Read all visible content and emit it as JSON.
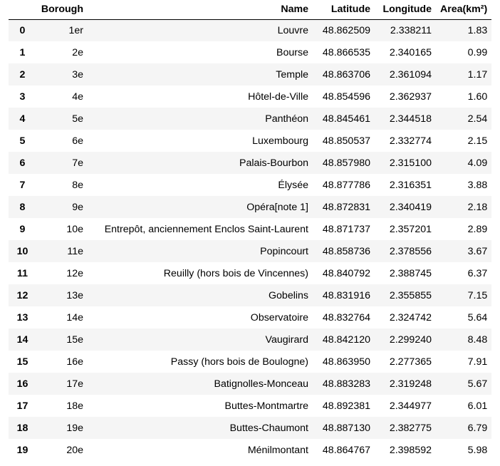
{
  "table": {
    "columns": [
      "",
      "Borough",
      "Name",
      "Latitude",
      "Longitude",
      "Area(km²)"
    ],
    "rows": [
      [
        "0",
        "1er",
        "Louvre",
        "48.862509",
        "2.338211",
        "1.83"
      ],
      [
        "1",
        "2e",
        "Bourse",
        "48.866535",
        "2.340165",
        "0.99"
      ],
      [
        "2",
        "3e",
        "Temple",
        "48.863706",
        "2.361094",
        "1.17"
      ],
      [
        "3",
        "4e",
        "Hôtel-de-Ville",
        "48.854596",
        "2.362937",
        "1.60"
      ],
      [
        "4",
        "5e",
        "Panthéon",
        "48.845461",
        "2.344518",
        "2.54"
      ],
      [
        "5",
        "6e",
        "Luxembourg",
        "48.850537",
        "2.332774",
        "2.15"
      ],
      [
        "6",
        "7e",
        "Palais-Bourbon",
        "48.857980",
        "2.315100",
        "4.09"
      ],
      [
        "7",
        "8e",
        "Élysée",
        "48.877786",
        "2.316351",
        "3.88"
      ],
      [
        "8",
        "9e",
        "Opéra[note 1]",
        "48.872831",
        "2.340419",
        "2.18"
      ],
      [
        "9",
        "10e",
        "Entrepôt, anciennement Enclos Saint-Laurent",
        "48.871737",
        "2.357201",
        "2.89"
      ],
      [
        "10",
        "11e",
        "Popincourt",
        "48.858736",
        "2.378556",
        "3.67"
      ],
      [
        "11",
        "12e",
        "Reuilly (hors bois de Vincennes)",
        "48.840792",
        "2.388745",
        "6.37"
      ],
      [
        "12",
        "13e",
        "Gobelins",
        "48.831916",
        "2.355855",
        "7.15"
      ],
      [
        "13",
        "14e",
        "Observatoire",
        "48.832764",
        "2.324742",
        "5.64"
      ],
      [
        "14",
        "15e",
        "Vaugirard",
        "48.842120",
        "2.299240",
        "8.48"
      ],
      [
        "15",
        "16e",
        "Passy (hors bois de Boulogne)",
        "48.863950",
        "2.277365",
        "7.91"
      ],
      [
        "16",
        "17e",
        "Batignolles-Monceau",
        "48.883283",
        "2.319248",
        "5.67"
      ],
      [
        "17",
        "18e",
        "Buttes-Montmartre",
        "48.892381",
        "2.344977",
        "6.01"
      ],
      [
        "18",
        "19e",
        "Buttes-Chaumont",
        "48.887130",
        "2.382775",
        "6.79"
      ],
      [
        "19",
        "20e",
        "Ménilmontant",
        "48.864767",
        "2.398592",
        "5.98"
      ]
    ]
  }
}
